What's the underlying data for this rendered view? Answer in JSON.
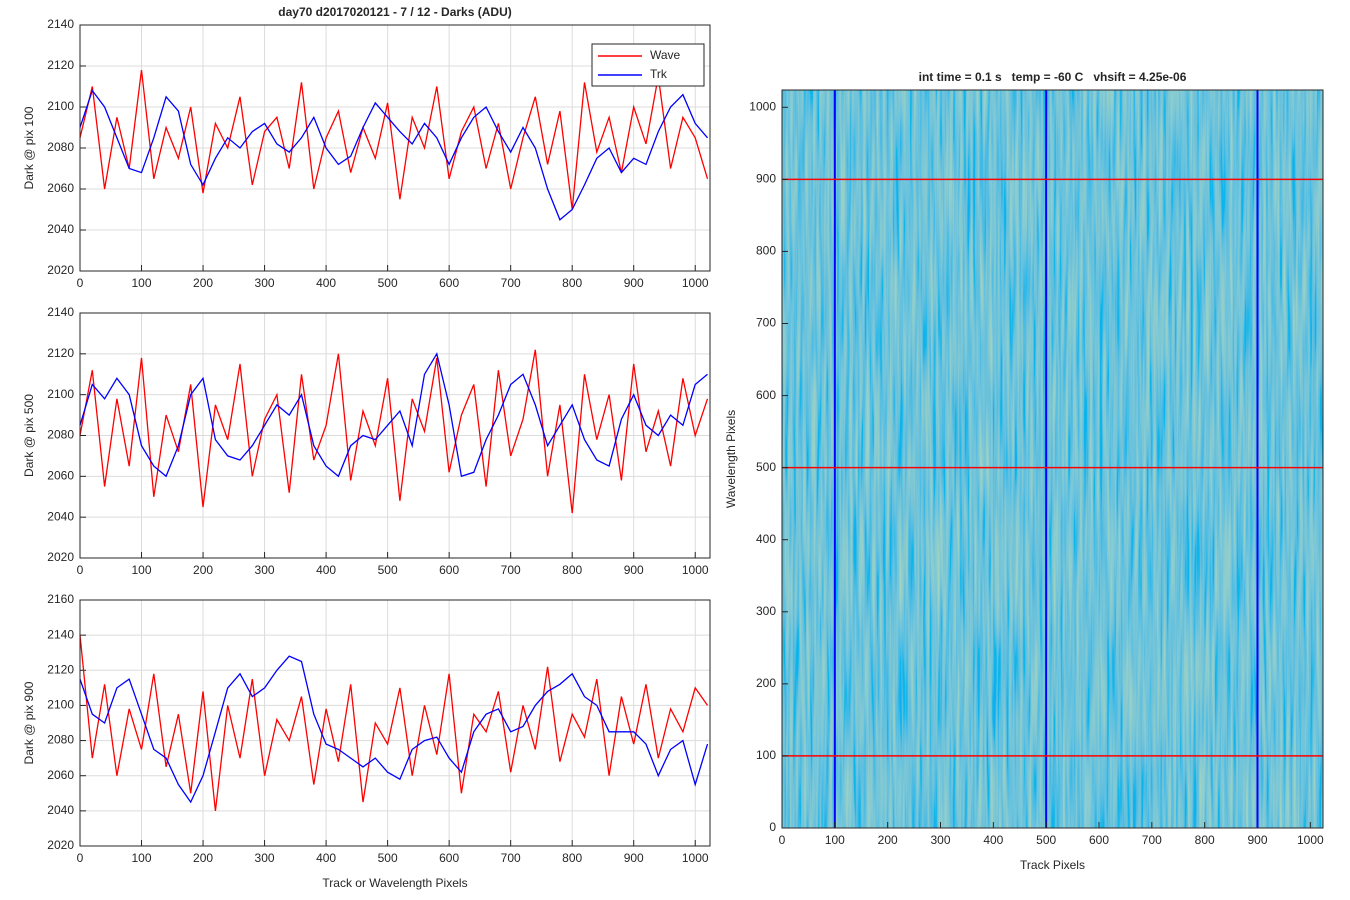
{
  "chart_data": [
    {
      "type": "line",
      "title": "day70 d2017020121 - 7 / 12 - Darks (ADU)",
      "ylabel": "Dark @ pix 100",
      "x": [
        0,
        20,
        40,
        60,
        80,
        100,
        120,
        140,
        160,
        180,
        200,
        220,
        240,
        260,
        280,
        300,
        320,
        340,
        360,
        380,
        400,
        420,
        440,
        460,
        480,
        500,
        520,
        540,
        560,
        580,
        600,
        620,
        640,
        660,
        680,
        700,
        720,
        740,
        760,
        780,
        800,
        820,
        840,
        860,
        880,
        900,
        920,
        940,
        960,
        980,
        1000,
        1020
      ],
      "series": [
        {
          "name": "Wave",
          "color": "#ff0000",
          "values": [
            2085,
            2110,
            2060,
            2095,
            2070,
            2118,
            2065,
            2090,
            2075,
            2100,
            2058,
            2092,
            2080,
            2105,
            2062,
            2088,
            2095,
            2070,
            2112,
            2060,
            2085,
            2098,
            2068,
            2090,
            2075,
            2102,
            2055,
            2095,
            2080,
            2110,
            2065,
            2088,
            2100,
            2070,
            2092,
            2060,
            2085,
            2105,
            2072,
            2098,
            2050,
            2112,
            2078,
            2095,
            2068,
            2100,
            2082,
            2115,
            2070,
            2095,
            2085,
            2065
          ]
        },
        {
          "name": "Trk",
          "color": "#0000ff",
          "values": [
            2090,
            2108,
            2100,
            2085,
            2070,
            2068,
            2085,
            2105,
            2098,
            2072,
            2062,
            2075,
            2085,
            2080,
            2088,
            2092,
            2082,
            2078,
            2085,
            2095,
            2080,
            2072,
            2076,
            2090,
            2102,
            2095,
            2088,
            2082,
            2092,
            2085,
            2072,
            2085,
            2095,
            2100,
            2088,
            2078,
            2090,
            2080,
            2060,
            2045,
            2050,
            2062,
            2075,
            2080,
            2068,
            2075,
            2072,
            2088,
            2100,
            2106,
            2092,
            2085
          ]
        }
      ],
      "xlim": [
        0,
        1024
      ],
      "ylim": [
        2020,
        2140
      ],
      "xticks": [
        0,
        100,
        200,
        300,
        400,
        500,
        600,
        700,
        800,
        900,
        1000
      ],
      "yticks": [
        2020,
        2040,
        2060,
        2080,
        2100,
        2120,
        2140
      ],
      "grid": true,
      "legend": "northeast"
    },
    {
      "type": "line",
      "ylabel": "Dark @ pix 500",
      "x": [
        0,
        20,
        40,
        60,
        80,
        100,
        120,
        140,
        160,
        180,
        200,
        220,
        240,
        260,
        280,
        300,
        320,
        340,
        360,
        380,
        400,
        420,
        440,
        460,
        480,
        500,
        520,
        540,
        560,
        580,
        600,
        620,
        640,
        660,
        680,
        700,
        720,
        740,
        760,
        780,
        800,
        820,
        840,
        860,
        880,
        900,
        920,
        940,
        960,
        980,
        1000,
        1020
      ],
      "series": [
        {
          "name": "Wave",
          "color": "#ff0000",
          "values": [
            2080,
            2112,
            2055,
            2098,
            2065,
            2118,
            2050,
            2090,
            2072,
            2105,
            2045,
            2095,
            2078,
            2115,
            2060,
            2088,
            2100,
            2052,
            2110,
            2068,
            2085,
            2120,
            2058,
            2092,
            2075,
            2108,
            2048,
            2098,
            2082,
            2118,
            2062,
            2090,
            2105,
            2055,
            2112,
            2070,
            2088,
            2122,
            2060,
            2095,
            2042,
            2110,
            2078,
            2100,
            2058,
            2115,
            2072,
            2092,
            2065,
            2108,
            2080,
            2098
          ]
        },
        {
          "name": "Trk",
          "color": "#0000ff",
          "values": [
            2085,
            2105,
            2098,
            2108,
            2100,
            2075,
            2065,
            2060,
            2075,
            2100,
            2108,
            2078,
            2070,
            2068,
            2075,
            2085,
            2095,
            2090,
            2100,
            2075,
            2065,
            2060,
            2075,
            2080,
            2078,
            2085,
            2092,
            2075,
            2110,
            2120,
            2095,
            2060,
            2062,
            2078,
            2090,
            2105,
            2110,
            2095,
            2075,
            2085,
            2095,
            2078,
            2068,
            2065,
            2088,
            2100,
            2085,
            2080,
            2090,
            2085,
            2105,
            2110
          ]
        }
      ],
      "xlim": [
        0,
        1024
      ],
      "ylim": [
        2020,
        2140
      ],
      "xticks": [
        0,
        100,
        200,
        300,
        400,
        500,
        600,
        700,
        800,
        900,
        1000
      ],
      "yticks": [
        2020,
        2040,
        2060,
        2080,
        2100,
        2120,
        2140
      ],
      "grid": true
    },
    {
      "type": "line",
      "ylabel": "Dark @ pix 900",
      "xlabel": "Track or Wavelength Pixels",
      "x": [
        0,
        20,
        40,
        60,
        80,
        100,
        120,
        140,
        160,
        180,
        200,
        220,
        240,
        260,
        280,
        300,
        320,
        340,
        360,
        380,
        400,
        420,
        440,
        460,
        480,
        500,
        520,
        540,
        560,
        580,
        600,
        620,
        640,
        660,
        680,
        700,
        720,
        740,
        760,
        780,
        800,
        820,
        840,
        860,
        880,
        900,
        920,
        940,
        960,
        980,
        1000,
        1020
      ],
      "series": [
        {
          "name": "Wave",
          "color": "#ff0000",
          "values": [
            2140,
            2070,
            2112,
            2060,
            2098,
            2075,
            2118,
            2065,
            2095,
            2050,
            2108,
            2040,
            2100,
            2070,
            2115,
            2060,
            2092,
            2080,
            2105,
            2055,
            2098,
            2068,
            2112,
            2045,
            2090,
            2078,
            2110,
            2060,
            2100,
            2072,
            2118,
            2050,
            2095,
            2085,
            2108,
            2062,
            2100,
            2075,
            2122,
            2068,
            2095,
            2082,
            2115,
            2060,
            2105,
            2078,
            2112,
            2070,
            2098,
            2085,
            2110,
            2100
          ]
        },
        {
          "name": "Trk",
          "color": "#0000ff",
          "values": [
            2115,
            2095,
            2090,
            2110,
            2115,
            2095,
            2075,
            2070,
            2055,
            2045,
            2060,
            2085,
            2110,
            2118,
            2105,
            2110,
            2120,
            2128,
            2125,
            2095,
            2078,
            2075,
            2070,
            2065,
            2070,
            2062,
            2058,
            2075,
            2080,
            2082,
            2070,
            2062,
            2085,
            2095,
            2098,
            2085,
            2088,
            2100,
            2108,
            2112,
            2118,
            2105,
            2100,
            2085,
            2085,
            2085,
            2078,
            2060,
            2075,
            2080,
            2055,
            2078
          ]
        }
      ],
      "xlim": [
        0,
        1024
      ],
      "ylim": [
        2020,
        2160
      ],
      "xticks": [
        0,
        100,
        200,
        300,
        400,
        500,
        600,
        700,
        800,
        900,
        1000
      ],
      "yticks": [
        2020,
        2040,
        2060,
        2080,
        2100,
        2120,
        2140,
        2160
      ],
      "grid": true
    },
    {
      "type": "heatmap",
      "title": "int time = 0.1 s   temp = -60 C   vhsift = 4.25e-06",
      "xlabel": "Track Pixels",
      "ylabel": "Wavelength Pixels",
      "xlim": [
        0,
        1024
      ],
      "ylim": [
        0,
        1024
      ],
      "xticks": [
        0,
        100,
        200,
        300,
        400,
        500,
        600,
        700,
        800,
        900,
        1000
      ],
      "yticks": [
        0,
        100,
        200,
        300,
        400,
        500,
        600,
        700,
        800,
        900,
        1000
      ],
      "vlines": [
        100,
        500,
        900
      ],
      "vline_color": "#0000ff",
      "hlines": [
        100,
        500,
        900
      ],
      "hline_color": "#ff0000"
    }
  ]
}
